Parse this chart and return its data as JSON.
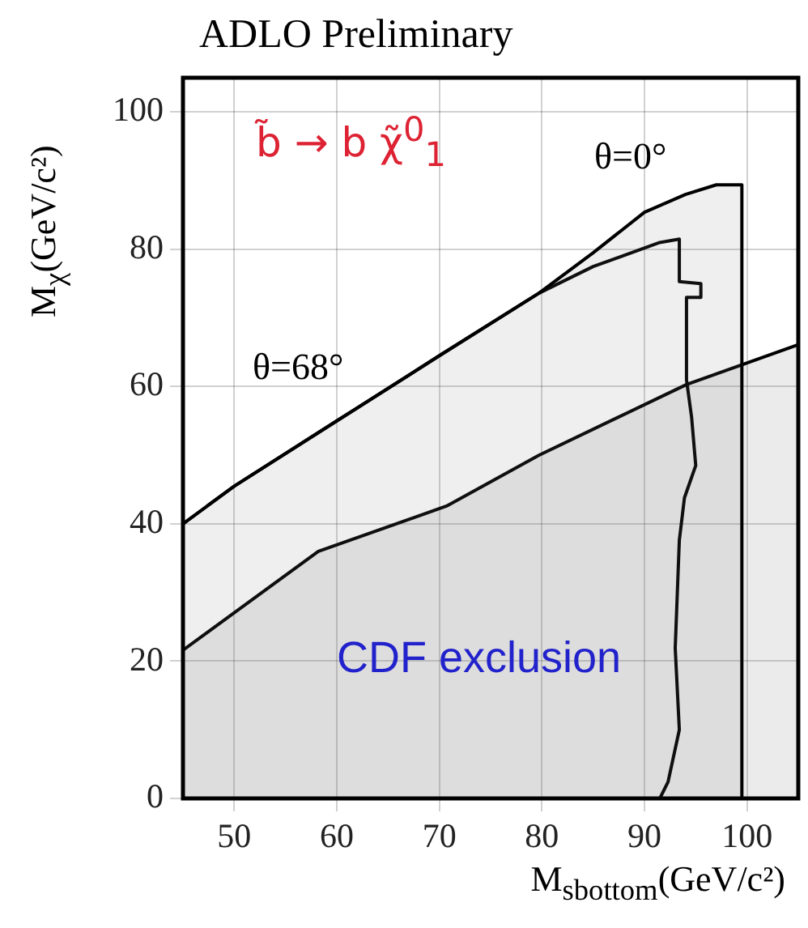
{
  "chart_data": {
    "type": "line",
    "title": "ADLO Preliminary",
    "xlabel": "M$_{sbottom}$(GeV/c²)",
    "ylabel": "M$_{χ}$(GeV/c²)",
    "xlim": [
      45,
      105
    ],
    "ylim": [
      0,
      105
    ],
    "xticks": [
      50,
      60,
      70,
      80,
      90,
      100
    ],
    "yticks": [
      0,
      20,
      40,
      60,
      80,
      100
    ],
    "grid": true,
    "legend": false,
    "marker": "none",
    "series": [
      {
        "type": "area",
        "color": "#000000",
        "x": [
          45,
          50,
          60,
          70,
          79.7,
          85,
          90,
          94,
          97,
          99.5,
          99.5
        ],
        "values": [
          40,
          45.5,
          55,
          64.5,
          73.6,
          79.5,
          85.4,
          88,
          89.4,
          89.4,
          0
        ]
      },
      {
        "type": "line",
        "color": "#000000",
        "x": [
          45,
          50,
          60,
          70,
          79.7,
          85,
          91.5,
          93.4,
          93.4,
          95.5,
          95.5,
          94.1,
          94.1,
          94.6,
          95,
          93.9,
          93.4,
          93,
          93.4,
          92.3,
          91.5
        ],
        "values": [
          40,
          45.5,
          55,
          64.5,
          73.6,
          77.5,
          81,
          81.5,
          75.3,
          75,
          73,
          73,
          61,
          55.5,
          48.5,
          43.8,
          37.6,
          21.9,
          10,
          2.4,
          0
        ]
      },
      {
        "type": "area",
        "color": "#000000",
        "x": [
          45,
          58.2,
          70.7,
          79.7,
          94.1,
          105
        ],
        "values": [
          21.6,
          36,
          42.6,
          50,
          60.3,
          66.1
        ]
      }
    ],
    "annotations": [
      "θ=0°",
      "θ=68°",
      "b̃ → b χ̃$^{0}$$_{1}$",
      "CDF exclusion"
    ]
  }
}
